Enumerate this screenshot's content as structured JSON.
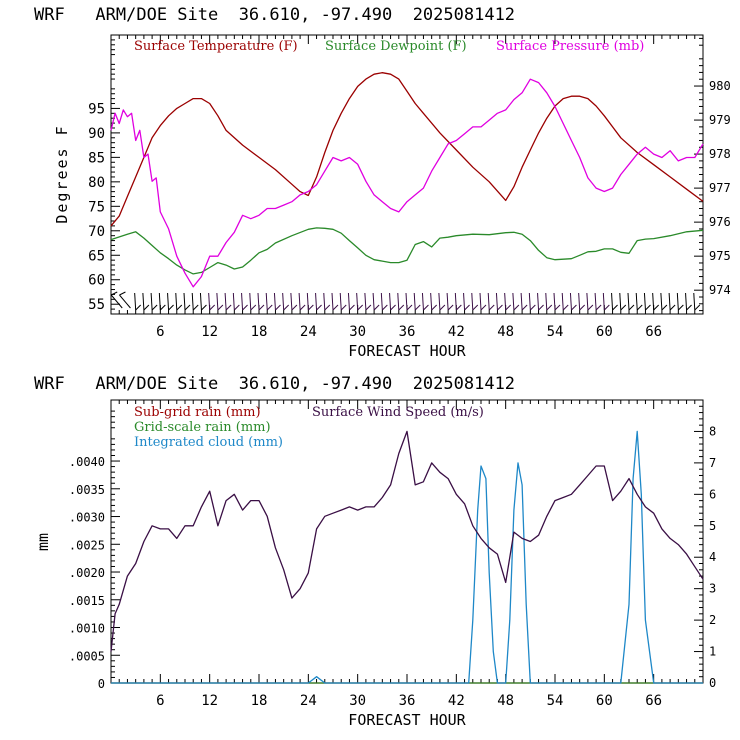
{
  "chart_data": [
    {
      "type": "line",
      "title": "WRF   ARM/DOE Site  36.610, -97.490  2025081412",
      "xlabel": "FORECAST HOUR",
      "ylabel": "Degrees F",
      "xlim": [
        0,
        72
      ],
      "ylim": [
        53,
        110
      ],
      "y2lim": [
        973.3,
        981.5
      ],
      "x_ticks": [
        "6",
        "12",
        "18",
        "24",
        "30",
        "36",
        "42",
        "48",
        "54",
        "60",
        "66"
      ],
      "y_ticks": [
        "55",
        "60",
        "65",
        "70",
        "75",
        "80",
        "85",
        "90",
        "95"
      ],
      "y2_ticks": [
        "974",
        "975",
        "976",
        "977",
        "978",
        "979",
        "980"
      ],
      "wind_barbs": true,
      "series": [
        {
          "name": "Surface Temperature (F)",
          "color": "#9b0000",
          "axis": "left",
          "x": [
            0,
            1,
            2,
            3,
            4,
            5,
            6,
            7,
            8,
            9,
            10,
            11,
            12,
            13,
            14,
            16,
            18,
            20,
            22,
            23,
            24,
            25,
            26,
            27,
            28,
            29,
            30,
            31,
            32,
            33,
            34,
            35,
            36,
            37,
            38,
            40,
            42,
            44,
            46,
            48,
            49,
            50,
            51,
            52,
            53,
            54,
            55,
            56,
            57,
            58,
            59,
            60,
            62,
            64,
            66,
            68,
            70,
            72
          ],
          "y": [
            71,
            73,
            77,
            81,
            85,
            89,
            91.5,
            93.5,
            95,
            96,
            97,
            97,
            96,
            93.5,
            90.5,
            87.5,
            85,
            82.5,
            79.5,
            78,
            77.2,
            81,
            86,
            90.5,
            94,
            97,
            99.5,
            101,
            102,
            102.3,
            102,
            101,
            98.5,
            96,
            94,
            90,
            86.5,
            83,
            80,
            76.2,
            79,
            83,
            86.5,
            90,
            93,
            95.5,
            97,
            97.5,
            97.5,
            97,
            95.5,
            93.5,
            89,
            86,
            83.5,
            81,
            78.5,
            76
          ]
        },
        {
          "name": "Surface Dewpoint (F)",
          "color": "#2a8a2a",
          "axis": "left",
          "x": [
            0,
            2,
            3,
            4,
            5,
            6,
            7,
            8,
            9,
            10,
            11,
            12,
            13,
            14,
            15,
            16,
            17,
            18,
            19,
            20,
            22,
            24,
            25,
            26,
            27,
            28,
            29,
            30,
            31,
            32,
            33,
            34,
            35,
            36,
            37,
            38,
            39,
            40,
            41,
            42,
            44,
            46,
            48,
            49,
            50,
            51,
            52,
            53,
            54,
            55,
            56,
            57,
            58,
            59,
            60,
            61,
            62,
            63,
            64,
            65,
            66,
            68,
            70,
            72
          ],
          "y": [
            68.2,
            69.3,
            69.8,
            68.5,
            67,
            65.5,
            64.3,
            63,
            62,
            61.2,
            61.5,
            62.5,
            63.5,
            63,
            62.2,
            62.6,
            64,
            65.5,
            66.2,
            67.5,
            69,
            70.3,
            70.6,
            70.5,
            70.3,
            69.5,
            68,
            66.5,
            65,
            64.1,
            63.8,
            63.5,
            63.5,
            64,
            67.2,
            67.8,
            66.7,
            68.5,
            68.7,
            69,
            69.3,
            69.2,
            69.6,
            69.7,
            69.3,
            68,
            66,
            64.5,
            64.1,
            64.2,
            64.3,
            65,
            65.7,
            65.8,
            66.3,
            66.3,
            65.6,
            65.4,
            68,
            68.3,
            68.4,
            69,
            69.8,
            70.1
          ]
        },
        {
          "name": "Surface Pressure (mb)",
          "color": "#e000e0",
          "axis": "right",
          "x": [
            0,
            0.5,
            1,
            1.5,
            2,
            2.5,
            3,
            3.5,
            4,
            4.5,
            5,
            5.5,
            6,
            7,
            8,
            9,
            10,
            11,
            12,
            13,
            14,
            15,
            16,
            17,
            18,
            19,
            20,
            21,
            22,
            23,
            24,
            25,
            26,
            27,
            28,
            29,
            30,
            31,
            32,
            33,
            34,
            35,
            36,
            37,
            38,
            39,
            40,
            41,
            42,
            43,
            44,
            45,
            46,
            47,
            48,
            49,
            50,
            51,
            52,
            53,
            54,
            55,
            56,
            57,
            58,
            59,
            60,
            61,
            62,
            63,
            64,
            65,
            66,
            67,
            68,
            69,
            70,
            71,
            72
          ],
          "y": [
            978.7,
            979.2,
            978.9,
            979.3,
            979.1,
            979.2,
            978.4,
            978.7,
            977.9,
            978.0,
            977.2,
            977.3,
            976.3,
            975.8,
            975.0,
            974.5,
            974.1,
            974.4,
            975.0,
            975.0,
            975.4,
            975.7,
            976.2,
            976.1,
            976.2,
            976.4,
            976.4,
            976.5,
            976.6,
            976.8,
            976.9,
            977.1,
            977.5,
            977.9,
            977.8,
            977.9,
            977.7,
            977.2,
            976.8,
            976.6,
            976.4,
            976.3,
            976.6,
            976.8,
            977.0,
            977.5,
            977.9,
            978.3,
            978.4,
            978.6,
            978.8,
            978.8,
            979.0,
            979.2,
            979.3,
            979.6,
            979.8,
            980.2,
            980.1,
            979.8,
            979.4,
            978.9,
            978.4,
            977.9,
            977.3,
            977.0,
            976.9,
            977.0,
            977.4,
            977.7,
            978.0,
            978.2,
            978.0,
            977.9,
            978.1,
            977.8,
            977.9,
            977.9,
            978.3
          ]
        }
      ]
    },
    {
      "type": "line",
      "title": "WRF   ARM/DOE Site  36.610, -97.490  2025081412",
      "xlabel": "FORECAST HOUR",
      "ylabel": "mm",
      "xlim": [
        0,
        72
      ],
      "ylim": [
        0,
        0.0051
      ],
      "y2lim": [
        0,
        9
      ],
      "x_ticks": [
        "6",
        "12",
        "18",
        "24",
        "30",
        "36",
        "42",
        "48",
        "54",
        "60",
        "66"
      ],
      "y_ticks": [
        "0",
        ".0005",
        ".0010",
        ".0015",
        ".0020",
        ".0025",
        ".0030",
        ".0035",
        ".0040"
      ],
      "y2_ticks": [
        "0",
        "1",
        "2",
        "3",
        "4",
        "5",
        "6",
        "7",
        "8"
      ],
      "series": [
        {
          "name": "Sub-grid rain (mm)",
          "color": "#9b0000",
          "axis": "left",
          "x": [
            0,
            72
          ],
          "y": [
            0,
            0
          ]
        },
        {
          "name": "Grid-scale rain (mm)",
          "color": "#2a8a2a",
          "axis": "left",
          "x": [
            0,
            72
          ],
          "y": [
            0,
            0
          ]
        },
        {
          "name": "Integrated cloud (mm)",
          "color": "#1e88c8",
          "axis": "right",
          "x": [
            0,
            24,
            25,
            26,
            43.5,
            44,
            44.6,
            45,
            45.6,
            46,
            46.5,
            47,
            48,
            48.5,
            49,
            49.5,
            50,
            50.5,
            51,
            52,
            62,
            63,
            63.5,
            64,
            64.5,
            65,
            66,
            72
          ],
          "y": [
            0,
            0,
            0.2,
            0,
            0,
            2,
            5.5,
            6.9,
            6.5,
            3.5,
            1,
            0,
            0,
            2,
            5.5,
            7.0,
            6.3,
            2.5,
            0,
            0,
            0,
            2.5,
            6.5,
            8.0,
            6.0,
            2,
            0,
            0
          ]
        },
        {
          "name": "Surface Wind Speed (m/s)",
          "color": "#3a0f45",
          "axis": "right",
          "x": [
            0,
            0.5,
            1,
            2,
            3,
            4,
            5,
            6,
            7,
            8,
            9,
            10,
            11,
            12,
            13,
            14,
            15,
            16,
            17,
            18,
            19,
            20,
            21,
            22,
            23,
            24,
            25,
            26,
            27,
            28,
            29,
            30,
            31,
            32,
            33,
            34,
            35,
            36,
            37,
            38,
            39,
            40,
            41,
            42,
            43,
            44,
            45,
            46,
            47,
            48,
            49,
            50,
            51,
            52,
            53,
            54,
            55,
            56,
            57,
            58,
            59,
            60,
            61,
            62,
            63,
            64,
            65,
            66,
            67,
            68,
            69,
            70,
            71,
            72
          ],
          "y": [
            1.0,
            2.2,
            2.5,
            3.4,
            3.8,
            4.5,
            5.0,
            4.9,
            4.9,
            4.6,
            5.0,
            5.0,
            5.6,
            6.1,
            5.0,
            5.8,
            6.0,
            5.5,
            5.8,
            5.8,
            5.3,
            4.3,
            3.6,
            2.7,
            3.0,
            3.5,
            4.9,
            5.3,
            5.4,
            5.5,
            5.6,
            5.5,
            5.6,
            5.6,
            5.9,
            6.3,
            7.3,
            8.0,
            6.3,
            6.4,
            7.0,
            6.7,
            6.5,
            6.0,
            5.7,
            5.0,
            4.6,
            4.3,
            4.1,
            3.2,
            4.8,
            4.6,
            4.5,
            4.7,
            5.3,
            5.8,
            5.9,
            6.0,
            6.3,
            6.6,
            6.9,
            6.9,
            5.8,
            6.1,
            6.5,
            6.0,
            5.6,
            5.4,
            4.9,
            4.6,
            4.4,
            4.1,
            3.7,
            3.3
          ]
        }
      ]
    }
  ]
}
